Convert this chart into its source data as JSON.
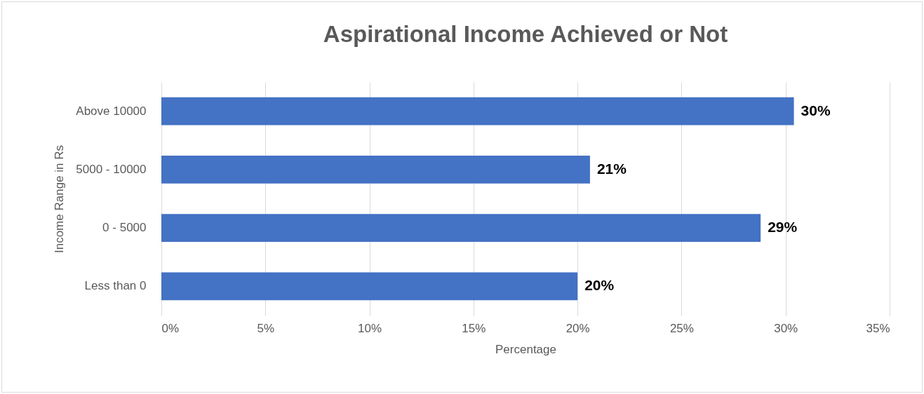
{
  "chart_data": {
    "type": "bar",
    "orientation": "horizontal",
    "title": "Aspirational Income Achieved or Not",
    "xlabel": "Percentage",
    "ylabel": "Income Range in Rs",
    "categories": [
      "Above 10000",
      "5000 - 10000",
      "0 - 5000",
      "Less than 0"
    ],
    "values": [
      30.4,
      20.6,
      28.8,
      20.0
    ],
    "value_labels": [
      "30%",
      "21%",
      "29%",
      "20%"
    ],
    "color": "#4472c4",
    "xlim": [
      0,
      35
    ],
    "xticks": [
      {
        "value": 0,
        "label": "0%"
      },
      {
        "value": 5,
        "label": "5%"
      },
      {
        "value": 10,
        "label": "10%"
      },
      {
        "value": 15,
        "label": "15%"
      },
      {
        "value": 20,
        "label": "20%"
      },
      {
        "value": 25,
        "label": "25%"
      },
      {
        "value": 30,
        "label": "30%"
      },
      {
        "value": 35,
        "label": "35%"
      }
    ],
    "grid": "x"
  }
}
